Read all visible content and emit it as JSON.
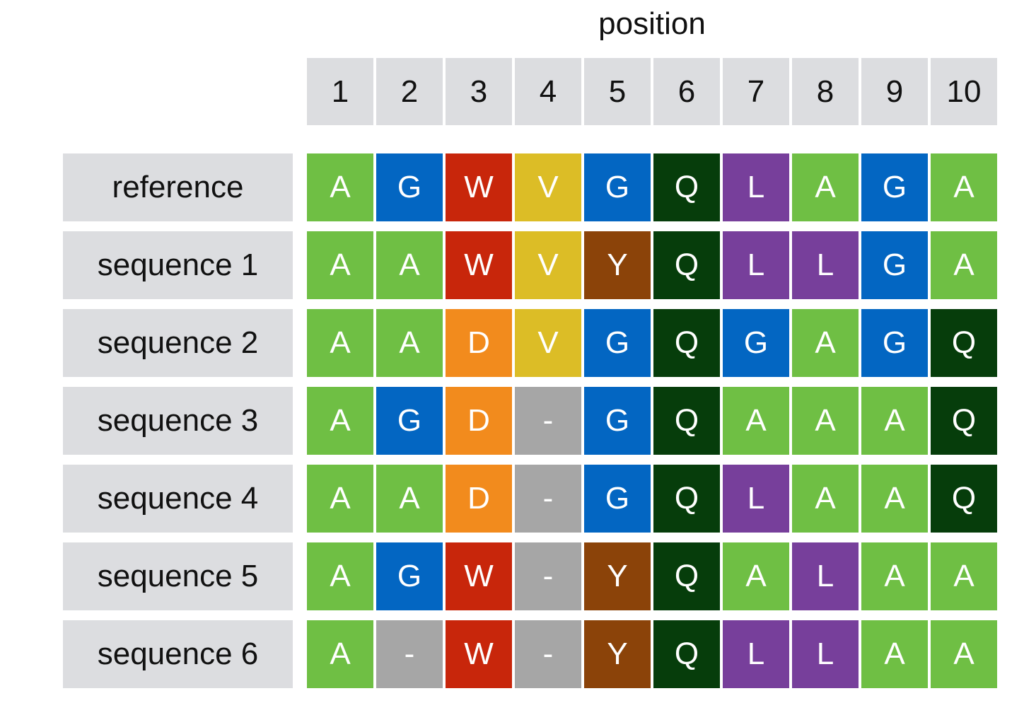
{
  "axis_title": "position",
  "positions": [
    "1",
    "2",
    "3",
    "4",
    "5",
    "6",
    "7",
    "8",
    "9",
    "10"
  ],
  "colors": {
    "A": "#6fbf44",
    "G": "#0366c2",
    "W": "#c8260b",
    "V": "#dcbd26",
    "Q": "#063d0b",
    "L": "#773f9b",
    "Y": "#8b4309",
    "D": "#f28b1d",
    "-": "#a6a6a6"
  },
  "rows": [
    {
      "label": "reference",
      "residues": [
        "A",
        "G",
        "W",
        "V",
        "G",
        "Q",
        "L",
        "A",
        "G",
        "A"
      ]
    },
    {
      "label": "sequence 1",
      "residues": [
        "A",
        "A",
        "W",
        "V",
        "Y",
        "Q",
        "L",
        "L",
        "G",
        "A"
      ]
    },
    {
      "label": "sequence 2",
      "residues": [
        "A",
        "A",
        "D",
        "V",
        "G",
        "Q",
        "G",
        "A",
        "G",
        "Q"
      ]
    },
    {
      "label": "sequence 3",
      "residues": [
        "A",
        "G",
        "D",
        "-",
        "G",
        "Q",
        "A",
        "A",
        "A",
        "Q"
      ]
    },
    {
      "label": "sequence 4",
      "residues": [
        "A",
        "A",
        "D",
        "-",
        "G",
        "Q",
        "L",
        "A",
        "A",
        "Q"
      ]
    },
    {
      "label": "sequence 5",
      "residues": [
        "A",
        "G",
        "W",
        "-",
        "Y",
        "Q",
        "A",
        "L",
        "A",
        "A"
      ]
    },
    {
      "label": "sequence 6",
      "residues": [
        "A",
        "-",
        "W",
        "-",
        "Y",
        "Q",
        "L",
        "L",
        "A",
        "A"
      ]
    }
  ]
}
